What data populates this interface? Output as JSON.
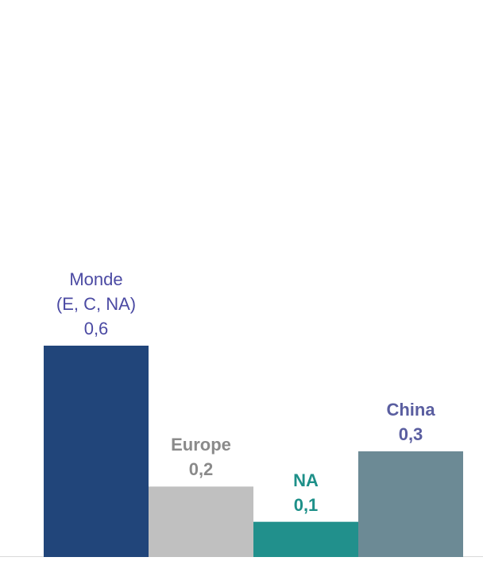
{
  "chart_data": {
    "type": "bar",
    "categories": [
      "Monde\n(E, C, NA)",
      "Europe",
      "NA",
      "China"
    ],
    "values": [
      0.6,
      0.2,
      0.1,
      0.3
    ],
    "value_labels": [
      "0,6",
      "0,2",
      "0,1",
      "0,3"
    ],
    "title": "",
    "xlabel": "",
    "ylabel": "",
    "ylim": [
      0,
      0.6
    ],
    "grid": false,
    "legend": "none",
    "bar_colors": [
      "#21457a",
      "#c0c0c0",
      "#21908c",
      "#6c8a95"
    ],
    "label_colors": [
      "#4b4aa3",
      "#8a8a8a",
      "#1e9089",
      "#5a5ea0"
    ]
  },
  "labels": {
    "monde_line1": "Monde",
    "monde_line2": "(E, C, NA)",
    "monde_value": "0,6",
    "europe_name": "Europe",
    "europe_value": "0,2",
    "na_name": "NA",
    "na_value": "0,1",
    "china_name": "China",
    "china_value": "0,3"
  }
}
